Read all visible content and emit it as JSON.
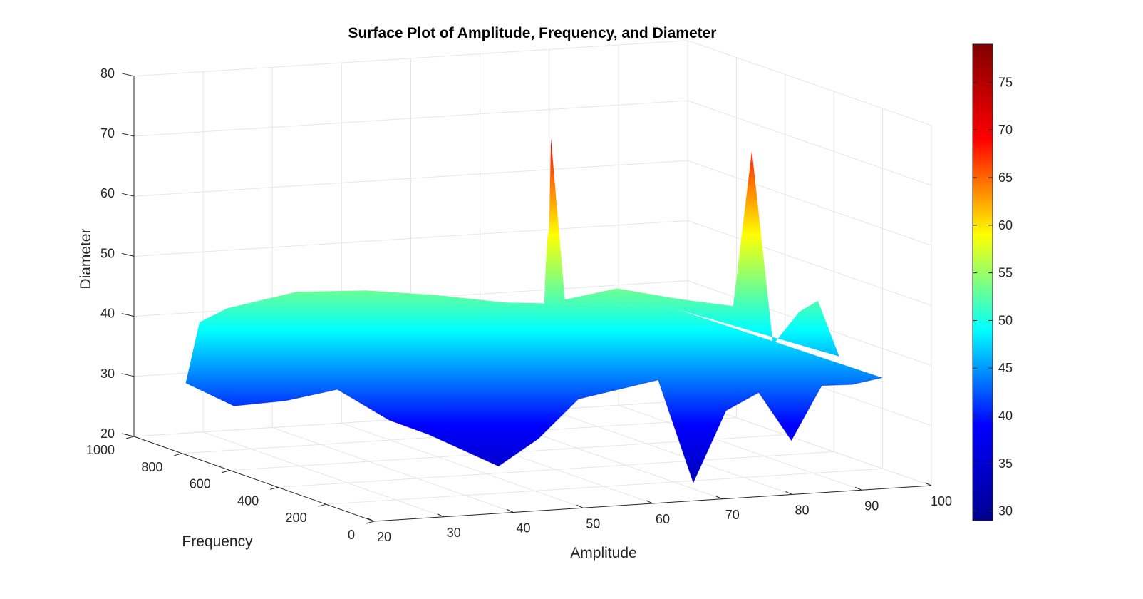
{
  "chart_data": {
    "type": "surface",
    "title": "Surface Plot of Amplitude, Frequency, and Diameter",
    "xlabel": "Amplitude",
    "ylabel": "Frequency",
    "zlabel": "Diameter",
    "x_ticks": [
      "20",
      "30",
      "40",
      "50",
      "60",
      "70",
      "80",
      "90",
      "100"
    ],
    "y_ticks": [
      "0",
      "200",
      "400",
      "600",
      "800",
      "1000"
    ],
    "z_ticks": [
      "20",
      "30",
      "40",
      "50",
      "60",
      "70",
      "80"
    ],
    "colorbar_ticks": [
      "30",
      "35",
      "40",
      "45",
      "50",
      "55",
      "60",
      "65",
      "70",
      "75"
    ],
    "xlim": [
      20,
      100
    ],
    "ylim": [
      0,
      1000
    ],
    "zlim": [
      20,
      80
    ],
    "clim": [
      29,
      79
    ],
    "colormap": "jet",
    "grid": true,
    "colorbar_placement": "right",
    "colormap_stops": [
      "#00008f",
      "#0000ff",
      "#00ffff",
      "#ffff00",
      "#ff0000",
      "#800000"
    ],
    "surface_profile": {
      "back_edge": [
        [
          24,
          900,
          30
        ],
        [
          26,
          900,
          40
        ],
        [
          30,
          900,
          42
        ],
        [
          40,
          900,
          44
        ],
        [
          50,
          900,
          43.5
        ],
        [
          60,
          900,
          42
        ],
        [
          65,
          900,
          41
        ],
        [
          70,
          900,
          40
        ],
        [
          80,
          900,
          39
        ],
        [
          90,
          900,
          38
        ],
        [
          95,
          900,
          37
        ]
      ],
      "front_edge": [
        [
          24,
          700,
          29
        ],
        [
          28,
          600,
          31
        ],
        [
          32,
          500,
          34
        ],
        [
          36,
          400,
          30
        ],
        [
          40,
          350,
          28
        ],
        [
          45,
          350,
          25
        ],
        [
          50,
          350,
          22
        ],
        [
          54,
          300,
          27
        ],
        [
          58,
          250,
          34
        ],
        [
          62,
          200,
          36
        ],
        [
          66,
          150,
          38
        ],
        [
          70,
          120,
          21
        ],
        [
          74,
          100,
          33
        ],
        [
          78,
          80,
          36
        ],
        [
          82,
          60,
          28
        ],
        [
          86,
          50,
          37
        ],
        [
          90,
          40,
          37
        ],
        [
          94,
          30,
          38
        ]
      ],
      "peaks": [
        [
          48,
          600,
          47
        ],
        [
          52,
          800,
          42
        ],
        [
          60,
          450,
          45
        ],
        [
          62,
          500,
          52
        ],
        [
          64,
          550,
          56
        ],
        [
          66,
          600,
          57
        ],
        [
          68,
          650,
          71
        ],
        [
          70,
          650,
          44
        ],
        [
          74,
          550,
          47
        ],
        [
          78,
          400,
          47
        ],
        [
          80,
          350,
          47
        ],
        [
          82,
          300,
          47
        ],
        [
          84,
          280,
          73
        ],
        [
          86,
          250,
          41
        ],
        [
          88,
          200,
          47
        ],
        [
          90,
          180,
          49
        ],
        [
          92,
          150,
          40
        ]
      ]
    }
  }
}
